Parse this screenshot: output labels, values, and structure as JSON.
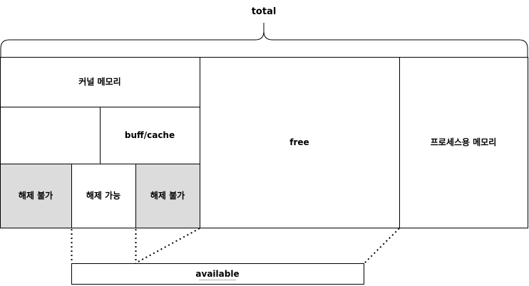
{
  "labels": {
    "total": "total",
    "kernel_memory": "커널 메모리",
    "buff_cache": "buff/cache",
    "non_reclaimable_left": "해제 불가",
    "reclaimable": "해제 가능",
    "non_reclaimable_right": "해제 불가",
    "free": "free",
    "process_memory": "프로세스용 메모리",
    "available": "available"
  },
  "colors": {
    "stroke": "#000000",
    "background": "#ffffff",
    "non_reclaimable_fill": "#dcdcdc"
  }
}
